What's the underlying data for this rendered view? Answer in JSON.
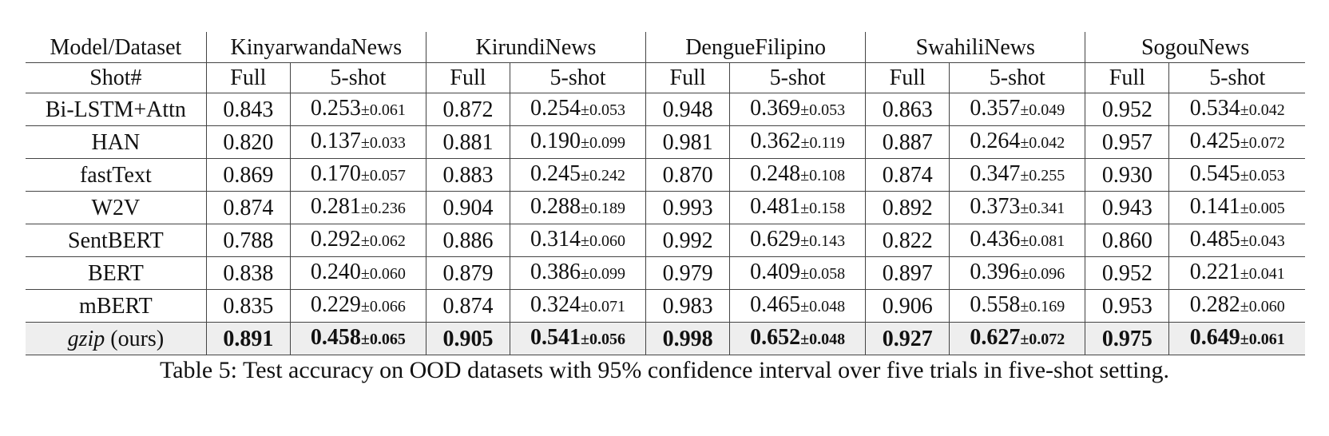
{
  "table": {
    "corner_top": "Model/Dataset",
    "corner_bottom": "Shot#",
    "datasets": [
      "KinyarwandaNews",
      "KirundiNews",
      "DengueFilipino",
      "SwahiliNews",
      "SogouNews"
    ],
    "shot_labels": {
      "full": "Full",
      "five": "5-shot"
    },
    "rows": [
      {
        "model": "Bi-LSTM+Attn",
        "cells": [
          {
            "full": "0.843",
            "five": "0.253",
            "ci": "±0.061"
          },
          {
            "full": "0.872",
            "five": "0.254",
            "ci": "±0.053"
          },
          {
            "full": "0.948",
            "five": "0.369",
            "ci": "±0.053"
          },
          {
            "full": "0.863",
            "five": "0.357",
            "ci": "±0.049"
          },
          {
            "full": "0.952",
            "five": "0.534",
            "ci": "±0.042"
          }
        ]
      },
      {
        "model": "HAN",
        "cells": [
          {
            "full": "0.820",
            "five": "0.137",
            "ci": "±0.033"
          },
          {
            "full": "0.881",
            "five": "0.190",
            "ci": "±0.099"
          },
          {
            "full": "0.981",
            "five": "0.362",
            "ci": "±0.119"
          },
          {
            "full": "0.887",
            "five": "0.264",
            "ci": "±0.042"
          },
          {
            "full": "0.957",
            "five": "0.425",
            "ci": "±0.072"
          }
        ]
      },
      {
        "model": "fastText",
        "cells": [
          {
            "full": "0.869",
            "five": "0.170",
            "ci": "±0.057"
          },
          {
            "full": "0.883",
            "five": "0.245",
            "ci": "±0.242"
          },
          {
            "full": "0.870",
            "five": "0.248",
            "ci": "±0.108"
          },
          {
            "full": "0.874",
            "five": "0.347",
            "ci": "±0.255"
          },
          {
            "full": "0.930",
            "five": "0.545",
            "ci": "±0.053"
          }
        ]
      },
      {
        "model": "W2V",
        "cells": [
          {
            "full": "0.874",
            "five": "0.281",
            "ci": "±0.236"
          },
          {
            "full": "0.904",
            "five": "0.288",
            "ci": "±0.189"
          },
          {
            "full": "0.993",
            "five": "0.481",
            "ci": "±0.158"
          },
          {
            "full": "0.892",
            "five": "0.373",
            "ci": "±0.341"
          },
          {
            "full": "0.943",
            "five": "0.141",
            "ci": "±0.005"
          }
        ]
      },
      {
        "model": "SentBERT",
        "cells": [
          {
            "full": "0.788",
            "five": "0.292",
            "ci": "±0.062"
          },
          {
            "full": "0.886",
            "five": "0.314",
            "ci": "±0.060"
          },
          {
            "full": "0.992",
            "five": "0.629",
            "ci": "±0.143"
          },
          {
            "full": "0.822",
            "five": "0.436",
            "ci": "±0.081"
          },
          {
            "full": "0.860",
            "five": "0.485",
            "ci": "±0.043"
          }
        ]
      },
      {
        "model": "BERT",
        "cells": [
          {
            "full": "0.838",
            "five": "0.240",
            "ci": "±0.060"
          },
          {
            "full": "0.879",
            "five": "0.386",
            "ci": "±0.099"
          },
          {
            "full": "0.979",
            "five": "0.409",
            "ci": "±0.058"
          },
          {
            "full": "0.897",
            "five": "0.396",
            "ci": "±0.096"
          },
          {
            "full": "0.952",
            "five": "0.221",
            "ci": "±0.041"
          }
        ]
      },
      {
        "model": "mBERT",
        "cells": [
          {
            "full": "0.835",
            "five": "0.229",
            "ci": "±0.066"
          },
          {
            "full": "0.874",
            "five": "0.324",
            "ci": "±0.071"
          },
          {
            "full": "0.983",
            "five": "0.465",
            "ci": "±0.048"
          },
          {
            "full": "0.906",
            "five": "0.558",
            "ci": "±0.169"
          },
          {
            "full": "0.953",
            "five": "0.282",
            "ci": "±0.060"
          }
        ]
      }
    ],
    "ours": {
      "model_italic": "gzip",
      "model_suffix": " (ours)",
      "cells": [
        {
          "full": "0.891",
          "five": "0.458",
          "ci": "±0.065"
        },
        {
          "full": "0.905",
          "five": "0.541",
          "ci": "±0.056"
        },
        {
          "full": "0.998",
          "five": "0.652",
          "ci": "±0.048"
        },
        {
          "full": "0.927",
          "five": "0.627",
          "ci": "±0.072"
        },
        {
          "full": "0.975",
          "five": "0.649",
          "ci": "±0.061"
        }
      ]
    }
  },
  "caption": "Table 5: Test accuracy on OOD datasets with 95% confidence interval over five trials in five-shot setting."
}
